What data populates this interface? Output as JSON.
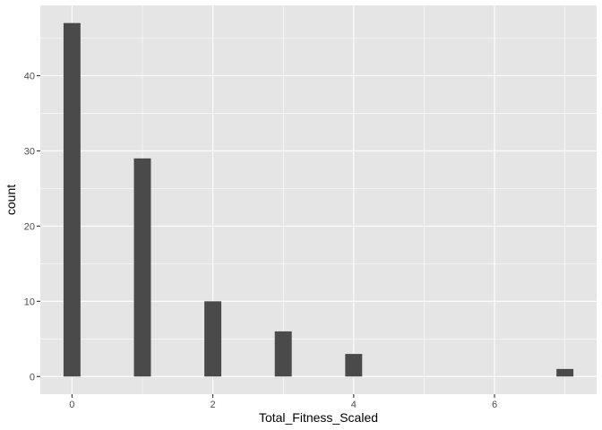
{
  "chart_data": {
    "type": "bar",
    "title": "",
    "xlabel": "Total_Fitness_Scaled",
    "ylabel": "count",
    "xlim": [
      -0.45,
      7.45
    ],
    "ylim": [
      -2.35,
      49.35
    ],
    "x_major_ticks": [
      0,
      2,
      4,
      6
    ],
    "x_tick_labels": [
      "0",
      "2",
      "4",
      "6"
    ],
    "x_minor_ticks": [
      1,
      3,
      5,
      7
    ],
    "y_major_ticks": [
      0,
      10,
      20,
      30,
      40
    ],
    "y_tick_labels": [
      "0",
      "10",
      "20",
      "30",
      "40"
    ],
    "y_minor_ticks": [
      5,
      15,
      25,
      35,
      45
    ],
    "bar_width": 0.241,
    "x": [
      0,
      1,
      2,
      3,
      4,
      7
    ],
    "values": [
      47,
      29,
      10,
      6,
      3,
      1
    ],
    "grid": true,
    "colors": {
      "panel_bg": "#e5e5e5",
      "grid": "#ffffff",
      "bar": "#4a4a4a",
      "tick_text": "#4d4d4d",
      "tick_mark": "#333333",
      "title_text": "#000000"
    }
  }
}
